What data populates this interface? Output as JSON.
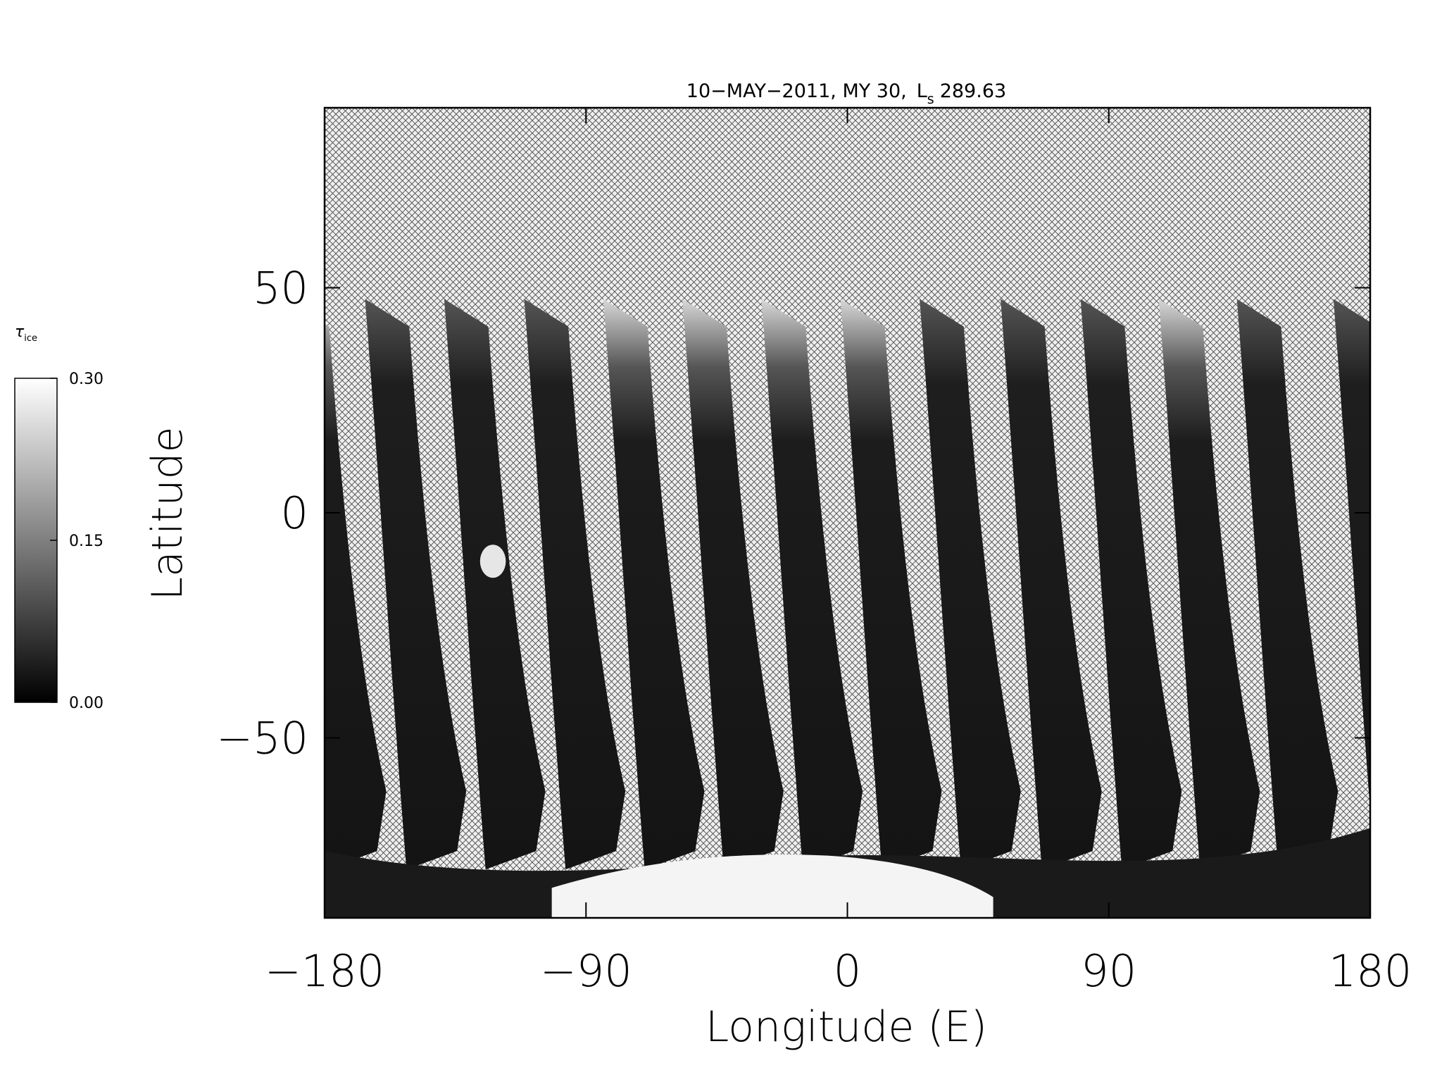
{
  "chart_data": {
    "type": "image-map",
    "title": {
      "prefix": "10−MAY−2011, MY 30,",
      "symbol": "L",
      "subscript": "s",
      "value": "289.63"
    },
    "x_label": "Longitude (E)",
    "y_label": "Latitude",
    "xlim": [
      -180,
      180
    ],
    "xticks": [
      {
        "value": -180,
        "label": "−180"
      },
      {
        "value": -90,
        "label": "−90"
      },
      0,
      90,
      180
    ],
    "ylim": [
      -90,
      90
    ],
    "yticks": [
      {
        "value": -50,
        "label": "−50"
      },
      0,
      50
    ],
    "colorbar": {
      "label": "τ",
      "label_subscript": "ice",
      "lim": [
        0,
        0.3
      ],
      "ticks": [
        {
          "value": 0,
          "label": "0.00"
        },
        {
          "value": 0.15,
          "label": "0.15"
        },
        {
          "value": 0.3,
          "label": "0.30"
        }
      ],
      "colors": [
        "#000000",
        "#ffffff"
      ]
    }
  }
}
